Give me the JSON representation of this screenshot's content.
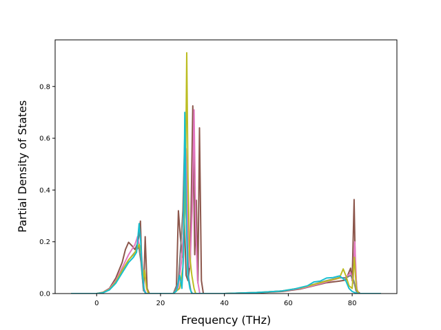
{
  "chart_data": {
    "type": "line",
    "title": "",
    "xlabel": "Frequency (THz)",
    "ylabel": "Partial Density of States",
    "xlim": [
      -13,
      94
    ],
    "ylim": [
      0,
      0.98
    ],
    "xticks": [
      0,
      20,
      40,
      60,
      80
    ],
    "yticks": [
      0.0,
      0.2,
      0.4,
      0.6,
      0.8
    ],
    "ytick_labels": [
      "0.0",
      "0.2",
      "0.4",
      "0.6",
      "0.8"
    ],
    "grid": false,
    "legend": "none",
    "series": [
      {
        "color": "#8c564b",
        "points": [
          [
            -8,
            0
          ],
          [
            0,
            0
          ],
          [
            2,
            0.005
          ],
          [
            4,
            0.02
          ],
          [
            6,
            0.06
          ],
          [
            8,
            0.12
          ],
          [
            9,
            0.17
          ],
          [
            10,
            0.198
          ],
          [
            11,
            0.185
          ],
          [
            12,
            0.17
          ],
          [
            13,
            0.2
          ],
          [
            13.7,
            0.28
          ],
          [
            14.2,
            0.08
          ],
          [
            14.7,
            0.01
          ],
          [
            15.2,
            0.22
          ],
          [
            15.8,
            0.02
          ],
          [
            16.5,
            0
          ],
          [
            24,
            0
          ],
          [
            25,
            0.03
          ],
          [
            25.6,
            0.32
          ],
          [
            26.2,
            0.22
          ],
          [
            26.8,
            0.14
          ],
          [
            27.4,
            0.3
          ],
          [
            28,
            0.07
          ],
          [
            28.6,
            0.05
          ],
          [
            29.3,
            0.12
          ],
          [
            30.1,
            0.725
          ],
          [
            30.7,
            0.15
          ],
          [
            31.2,
            0.36
          ],
          [
            31.7,
            0.04
          ],
          [
            32.2,
            0.64
          ],
          [
            32.8,
            0.05
          ],
          [
            33.4,
            0
          ],
          [
            40,
            0
          ],
          [
            50,
            0.003
          ],
          [
            58,
            0.008
          ],
          [
            64,
            0.018
          ],
          [
            68,
            0.03
          ],
          [
            72,
            0.042
          ],
          [
            76,
            0.048
          ],
          [
            78,
            0.052
          ],
          [
            79.5,
            0.098
          ],
          [
            80,
            0.05
          ],
          [
            80.6,
            0.363
          ],
          [
            81,
            0.1
          ],
          [
            81.5,
            0.01
          ],
          [
            82.5,
            0
          ],
          [
            89,
            0
          ]
        ]
      },
      {
        "color": "#e377c2",
        "points": [
          [
            -8,
            0
          ],
          [
            0,
            0
          ],
          [
            2,
            0.004
          ],
          [
            4,
            0.018
          ],
          [
            6,
            0.05
          ],
          [
            8,
            0.1
          ],
          [
            10,
            0.15
          ],
          [
            11,
            0.17
          ],
          [
            12,
            0.19
          ],
          [
            12.8,
            0.22
          ],
          [
            13.3,
            0.19
          ],
          [
            14,
            0.16
          ],
          [
            14.8,
            0.02
          ],
          [
            15.5,
            0
          ],
          [
            24,
            0
          ],
          [
            25.5,
            0.02
          ],
          [
            26.5,
            0.12
          ],
          [
            27.3,
            0.25
          ],
          [
            28,
            0.56
          ],
          [
            28.6,
            0.25
          ],
          [
            29.2,
            0.1
          ],
          [
            29.9,
            0.32
          ],
          [
            30.5,
            0.71
          ],
          [
            31,
            0.27
          ],
          [
            31.6,
            0.05
          ],
          [
            32.3,
            0
          ],
          [
            40,
            0
          ],
          [
            50,
            0.004
          ],
          [
            58,
            0.01
          ],
          [
            64,
            0.02
          ],
          [
            68,
            0.032
          ],
          [
            72,
            0.045
          ],
          [
            76,
            0.06
          ],
          [
            78,
            0.062
          ],
          [
            79.5,
            0.08
          ],
          [
            80.3,
            0.04
          ],
          [
            80.8,
            0.2
          ],
          [
            81.4,
            0.02
          ],
          [
            82,
            0
          ],
          [
            89,
            0
          ]
        ]
      },
      {
        "color": "#7f7f7f",
        "points": [
          [
            -8,
            0
          ],
          [
            0,
            0
          ],
          [
            2,
            0.003
          ],
          [
            4,
            0.015
          ],
          [
            6,
            0.045
          ],
          [
            8,
            0.09
          ],
          [
            10,
            0.13
          ],
          [
            12,
            0.16
          ],
          [
            13.2,
            0.18
          ],
          [
            13.9,
            0.12
          ],
          [
            14.6,
            0.02
          ],
          [
            15.3,
            0
          ],
          [
            24,
            0
          ],
          [
            25.5,
            0.04
          ],
          [
            26.3,
            0.18
          ],
          [
            27,
            0.32
          ],
          [
            27.6,
            0.62
          ],
          [
            28.1,
            0.28
          ],
          [
            28.8,
            0.06
          ],
          [
            29.5,
            0.01
          ],
          [
            30,
            0
          ],
          [
            40,
            0
          ],
          [
            50,
            0.004
          ],
          [
            58,
            0.01
          ],
          [
            64,
            0.022
          ],
          [
            68,
            0.036
          ],
          [
            72,
            0.05
          ],
          [
            76,
            0.062
          ],
          [
            78,
            0.06
          ],
          [
            79.5,
            0.07
          ],
          [
            80.5,
            0.05
          ],
          [
            81.2,
            0.01
          ],
          [
            82,
            0
          ],
          [
            89,
            0
          ]
        ]
      },
      {
        "color": "#bcbd22",
        "points": [
          [
            -8,
            0
          ],
          [
            0,
            0
          ],
          [
            2,
            0.004
          ],
          [
            4,
            0.016
          ],
          [
            6,
            0.045
          ],
          [
            8,
            0.09
          ],
          [
            10,
            0.13
          ],
          [
            11.5,
            0.15
          ],
          [
            12.5,
            0.17
          ],
          [
            13.3,
            0.19
          ],
          [
            13.9,
            0.16
          ],
          [
            14.6,
            0.05
          ],
          [
            15,
            0.09
          ],
          [
            15.6,
            0.02
          ],
          [
            16.2,
            0
          ],
          [
            24,
            0
          ],
          [
            26,
            0.02
          ],
          [
            27,
            0.1
          ],
          [
            27.8,
            0.4
          ],
          [
            28.2,
            0.93
          ],
          [
            28.6,
            0.45
          ],
          [
            29.1,
            0.15
          ],
          [
            29.8,
            0.07
          ],
          [
            30.5,
            0.02
          ],
          [
            31,
            0
          ],
          [
            40,
            0
          ],
          [
            50,
            0.004
          ],
          [
            58,
            0.01
          ],
          [
            64,
            0.022
          ],
          [
            68,
            0.035
          ],
          [
            72,
            0.048
          ],
          [
            76,
            0.06
          ],
          [
            77.2,
            0.095
          ],
          [
            78,
            0.07
          ],
          [
            79,
            0.03
          ],
          [
            80,
            0.02
          ],
          [
            80.7,
            0.14
          ],
          [
            81.3,
            0.02
          ],
          [
            82,
            0
          ],
          [
            89,
            0
          ]
        ]
      },
      {
        "color": "#17becf",
        "points": [
          [
            -8,
            0
          ],
          [
            0,
            0
          ],
          [
            2,
            0.003
          ],
          [
            4,
            0.014
          ],
          [
            6,
            0.04
          ],
          [
            8,
            0.08
          ],
          [
            10,
            0.12
          ],
          [
            11.5,
            0.14
          ],
          [
            12.5,
            0.16
          ],
          [
            13.3,
            0.27
          ],
          [
            13.8,
            0.2
          ],
          [
            14.3,
            0.08
          ],
          [
            14.9,
            0.01
          ],
          [
            15.5,
            0
          ],
          [
            24,
            0
          ],
          [
            25,
            0.01
          ],
          [
            26,
            0.07
          ],
          [
            26.7,
            0.02
          ],
          [
            27.2,
            0.15
          ],
          [
            27.6,
            0.7
          ],
          [
            28,
            0.33
          ],
          [
            28.5,
            0.07
          ],
          [
            29.2,
            0.02
          ],
          [
            29.8,
            0
          ],
          [
            40,
            0
          ],
          [
            50,
            0.004
          ],
          [
            58,
            0.01
          ],
          [
            62,
            0.018
          ],
          [
            66,
            0.03
          ],
          [
            68,
            0.045
          ],
          [
            70,
            0.048
          ],
          [
            72,
            0.06
          ],
          [
            74,
            0.062
          ],
          [
            76,
            0.068
          ],
          [
            78,
            0.05
          ],
          [
            79,
            0.02
          ],
          [
            80,
            0.008
          ],
          [
            81,
            0.003
          ],
          [
            82,
            0
          ],
          [
            89,
            0
          ]
        ]
      }
    ]
  }
}
